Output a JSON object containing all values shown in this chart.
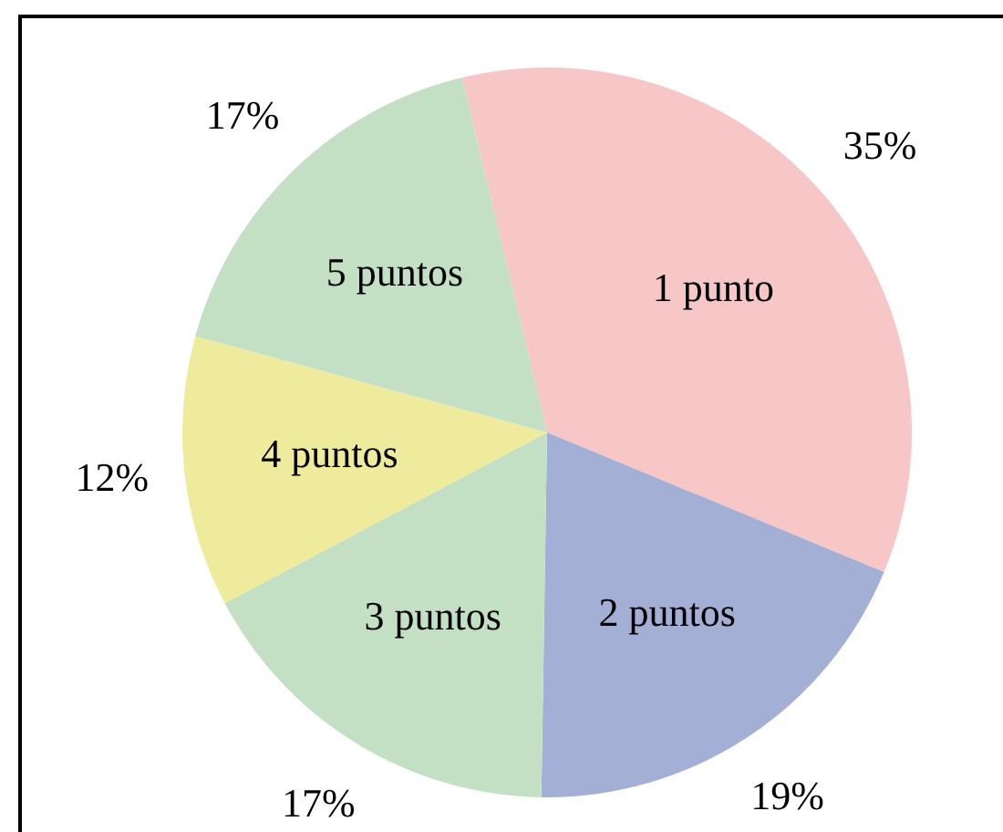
{
  "chart_data": {
    "type": "pie",
    "categories": [
      "1 punto",
      "2 puntos",
      "3 puntos",
      "4 puntos",
      "5 puntos"
    ],
    "values": [
      35,
      19,
      17,
      12,
      17
    ],
    "colors": [
      "#f7c6c7",
      "#a4afd6",
      "#c3e0c5",
      "#efeb9c",
      "#c3e0c5"
    ],
    "value_labels": [
      "35%",
      "19%",
      "17%",
      "12%",
      "17%"
    ],
    "legend": false
  }
}
